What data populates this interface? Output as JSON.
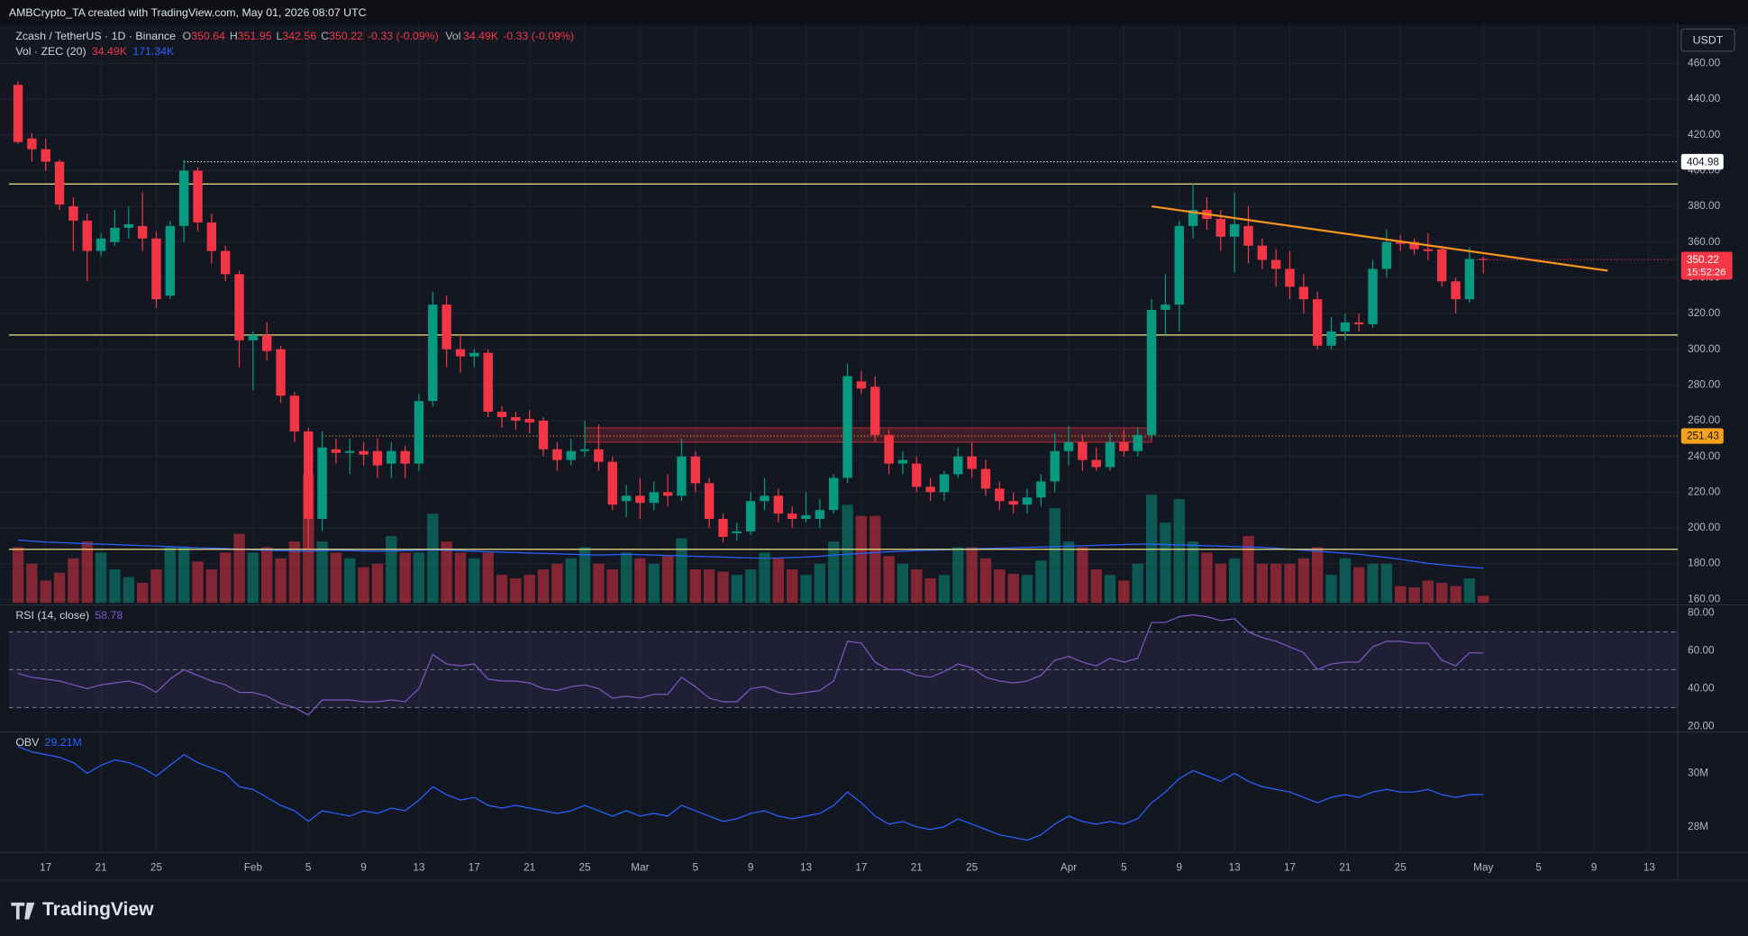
{
  "header": {
    "credit": "AMBCrypto_TA created with TradingView.com, May 01, 2026 08:07 UTC",
    "currency": "USDT",
    "logo": "TradingView"
  },
  "legend": {
    "symbol": "Zcash / TetherUS · 1D · Binance",
    "o": "O",
    "h": "H",
    "l": "L",
    "c": "C",
    "change": "-0.33 (-0.09%)",
    "vol": "Vol",
    "vol_value": "34.49K",
    "vol_change": "-0.33 (-0.09%)",
    "vol_title": "Vol · ZEC (20)",
    "vol_last": "34.49K",
    "vol_ma_last": "171.34K",
    "rsi_title": "RSI (14, close)",
    "obv_title": "OBV",
    "obv_last": "29.21M",
    "countdown": "15:52:26"
  },
  "chart_data": {
    "type": "candlestick",
    "title": "Zcash / TetherUS · 1D · Binance",
    "categories": [
      "Jan 15",
      "Jan 16",
      "Jan 17",
      "Jan 18",
      "Jan 19",
      "Jan 20",
      "Jan 21",
      "Jan 22",
      "Jan 23",
      "Jan 24",
      "Jan 25",
      "Jan 26",
      "Jan 27",
      "Jan 28",
      "Jan 29",
      "Jan 30",
      "Jan 31",
      "Feb 1",
      "Feb 2",
      "Feb 3",
      "Feb 4",
      "Feb 5",
      "Feb 6",
      "Feb 7",
      "Feb 8",
      "Feb 9",
      "Feb 10",
      "Feb 11",
      "Feb 12",
      "Feb 13",
      "Feb 14",
      "Feb 15",
      "Feb 16",
      "Feb 17",
      "Feb 18",
      "Feb 19",
      "Feb 20",
      "Feb 21",
      "Feb 22",
      "Feb 23",
      "Feb 24",
      "Feb 25",
      "Feb 26",
      "Feb 27",
      "Feb 28",
      "Mar 1",
      "Mar 2",
      "Mar 3",
      "Mar 4",
      "Mar 5",
      "Mar 6",
      "Mar 7",
      "Mar 8",
      "Mar 9",
      "Mar 10",
      "Mar 11",
      "Mar 12",
      "Mar 13",
      "Mar 14",
      "Mar 15",
      "Mar 16",
      "Mar 17",
      "Mar 18",
      "Mar 19",
      "Mar 20",
      "Mar 21",
      "Mar 22",
      "Mar 23",
      "Mar 24",
      "Mar 25",
      "Mar 26",
      "Mar 27",
      "Mar 28",
      "Mar 29",
      "Mar 30",
      "Mar 31",
      "Apr 1",
      "Apr 2",
      "Apr 3",
      "Apr 4",
      "Apr 5",
      "Apr 6",
      "Apr 7",
      "Apr 8",
      "Apr 9",
      "Apr 10",
      "Apr 11",
      "Apr 12",
      "Apr 13",
      "Apr 14",
      "Apr 15",
      "Apr 16",
      "Apr 17",
      "Apr 18",
      "Apr 19",
      "Apr 20",
      "Apr 21",
      "Apr 22",
      "Apr 23",
      "Apr 24",
      "Apr 25",
      "Apr 26",
      "Apr 27",
      "Apr 28",
      "Apr 29",
      "Apr 30",
      "May 1"
    ],
    "open": [
      448,
      418,
      412,
      405,
      380,
      372,
      355,
      360,
      368,
      369,
      362,
      330,
      369,
      400,
      371,
      355,
      342,
      305,
      308,
      300,
      274,
      254,
      205,
      244,
      242,
      243,
      243,
      236,
      243,
      236,
      271,
      325,
      300,
      296,
      298,
      265,
      262,
      261,
      260,
      244,
      238,
      243,
      244,
      237,
      215,
      218,
      214,
      220,
      218,
      240,
      225,
      205,
      197,
      198,
      215,
      218,
      208,
      205,
      205,
      210,
      228,
      282,
      279,
      252,
      236,
      236,
      223,
      220,
      230,
      240,
      233,
      222,
      215,
      213,
      217,
      226,
      243,
      248,
      238,
      234,
      248,
      243,
      252,
      322,
      325,
      369,
      378,
      373,
      363,
      369,
      358,
      350,
      345,
      335,
      328,
      302,
      310,
      315,
      314,
      345,
      360,
      360,
      356,
      356,
      338,
      328,
      350.64
    ],
    "high": [
      450,
      421,
      418,
      406,
      385,
      376,
      365,
      378,
      380,
      388,
      366,
      372,
      406,
      402,
      376,
      358,
      344,
      310,
      315,
      302,
      276,
      256,
      254,
      250,
      250,
      248,
      250,
      248,
      246,
      275,
      332,
      330,
      308,
      300,
      300,
      268,
      265,
      266,
      262,
      248,
      250,
      260,
      258,
      240,
      224,
      228,
      226,
      230,
      250,
      243,
      228,
      208,
      203,
      220,
      228,
      222,
      212,
      220,
      216,
      230,
      292,
      288,
      285,
      255,
      243,
      240,
      228,
      232,
      245,
      248,
      238,
      226,
      220,
      222,
      230,
      253,
      257,
      252,
      245,
      253,
      255,
      256,
      328,
      342,
      372,
      393,
      385,
      378,
      388,
      380,
      362,
      356,
      355,
      342,
      332,
      318,
      320,
      320,
      350,
      367,
      364,
      362,
      365,
      358,
      340,
      357,
      351.95
    ],
    "low": [
      415,
      405,
      400,
      378,
      355,
      338,
      352,
      358,
      362,
      355,
      323,
      328,
      360,
      366,
      348,
      338,
      290,
      277,
      294,
      270,
      248,
      188,
      198,
      236,
      230,
      235,
      228,
      228,
      228,
      232,
      268,
      290,
      287,
      290,
      262,
      256,
      255,
      253,
      240,
      232,
      235,
      240,
      232,
      210,
      206,
      205,
      210,
      212,
      215,
      220,
      200,
      192,
      193,
      196,
      210,
      203,
      200,
      203,
      200,
      208,
      225,
      275,
      248,
      230,
      230,
      220,
      215,
      215,
      228,
      228,
      218,
      210,
      208,
      208,
      212,
      220,
      235,
      232,
      232,
      232,
      240,
      240,
      250,
      308,
      310,
      362,
      367,
      355,
      343,
      348,
      345,
      335,
      328,
      320,
      300,
      300,
      305,
      310,
      312,
      340,
      355,
      353,
      350,
      335,
      320,
      326,
      342.56
    ],
    "close": [
      416,
      412,
      405,
      381,
      372,
      355,
      362,
      368,
      370,
      362,
      328,
      369,
      400,
      371,
      355,
      342,
      305,
      308,
      299,
      274,
      254,
      205,
      245,
      242,
      243,
      241,
      235,
      243,
      236,
      271,
      325,
      300,
      296,
      298,
      265,
      262,
      260,
      259,
      244,
      238,
      243,
      244,
      237,
      213,
      218,
      214,
      220,
      218,
      240,
      225,
      205,
      195,
      198,
      215,
      218,
      208,
      205,
      207,
      210,
      228,
      285,
      278,
      252,
      236,
      238,
      223,
      220,
      230,
      240,
      233,
      222,
      215,
      213,
      217,
      226,
      243,
      248,
      238,
      234,
      248,
      243,
      252,
      322,
      325,
      369,
      378,
      373,
      363,
      370,
      358,
      350,
      345,
      335,
      328,
      302,
      310,
      315,
      314,
      345,
      360,
      359,
      356,
      355,
      338,
      328,
      350.55,
      350.22
    ],
    "volume": [
      275,
      193,
      110,
      149,
      220,
      303,
      248,
      165,
      127,
      99,
      165,
      275,
      275,
      204,
      165,
      248,
      341,
      248,
      275,
      220,
      303,
      633,
      303,
      248,
      220,
      176,
      193,
      330,
      248,
      248,
      440,
      303,
      248,
      220,
      248,
      138,
      121,
      138,
      165,
      193,
      220,
      275,
      193,
      165,
      248,
      220,
      193,
      231,
      319,
      165,
      165,
      154,
      138,
      165,
      248,
      220,
      165,
      138,
      193,
      303,
      484,
      429,
      429,
      231,
      193,
      165,
      121,
      138,
      275,
      275,
      220,
      165,
      143,
      138,
      209,
      468,
      303,
      275,
      165,
      138,
      110,
      193,
      534,
      396,
      512,
      303,
      248,
      193,
      220,
      330,
      193,
      193,
      193,
      220,
      275,
      138,
      220,
      176,
      193,
      193,
      83,
      77,
      110,
      99,
      83,
      121,
      34.49
    ],
    "volume_ma": [
      310,
      305,
      300,
      298,
      295,
      292,
      290,
      288,
      285,
      283,
      280,
      278,
      275,
      272,
      270,
      268,
      265,
      262,
      260,
      258,
      256,
      255,
      258,
      260,
      258,
      256,
      255,
      256,
      258,
      260,
      262,
      260,
      258,
      255,
      252,
      250,
      248,
      246,
      244,
      242,
      240,
      238,
      236,
      238,
      240,
      238,
      236,
      234,
      232,
      230,
      228,
      226,
      224,
      222,
      220,
      222,
      224,
      226,
      230,
      236,
      240,
      244,
      248,
      252,
      255,
      258,
      260,
      262,
      264,
      266,
      268,
      270,
      272,
      274,
      276,
      278,
      280,
      282,
      284,
      286,
      288,
      290,
      290,
      288,
      286,
      284,
      282,
      280,
      278,
      276,
      274,
      270,
      265,
      260,
      255,
      250,
      245,
      240,
      232,
      224,
      215,
      205,
      195,
      188,
      182,
      176,
      171.34
    ],
    "rsi": [
      48,
      46,
      45,
      44,
      42,
      40,
      42,
      43,
      44,
      42,
      38,
      45,
      50,
      47,
      44,
      42,
      38,
      38,
      36,
      32,
      30,
      26,
      34,
      34,
      34,
      33,
      33,
      34,
      33,
      40,
      58,
      53,
      52,
      53,
      45,
      44,
      44,
      43,
      40,
      39,
      41,
      42,
      40,
      35,
      36,
      35,
      37,
      37,
      46,
      41,
      35,
      33,
      33,
      40,
      41,
      38,
      37,
      38,
      39,
      44,
      65,
      64,
      54,
      50,
      50,
      47,
      46,
      49,
      53,
      51,
      46,
      44,
      43,
      44,
      47,
      55,
      57,
      54,
      52,
      56,
      54,
      56,
      75,
      75,
      78,
      79,
      78,
      76,
      77,
      70,
      67,
      65,
      62,
      59,
      50,
      53,
      54,
      54,
      62,
      65,
      65,
      64,
      64,
      55,
      52,
      59,
      58.78
    ],
    "obv": [
      31.0,
      30.8,
      30.7,
      30.6,
      30.4,
      30.0,
      30.3,
      30.5,
      30.4,
      30.2,
      29.9,
      30.3,
      30.7,
      30.4,
      30.2,
      30.0,
      29.5,
      29.4,
      29.1,
      28.8,
      28.6,
      28.2,
      28.6,
      28.5,
      28.4,
      28.6,
      28.5,
      28.7,
      28.6,
      29.0,
      29.5,
      29.2,
      29.0,
      29.1,
      28.8,
      28.7,
      28.8,
      28.7,
      28.6,
      28.5,
      28.6,
      28.8,
      28.6,
      28.4,
      28.6,
      28.4,
      28.5,
      28.4,
      28.8,
      28.6,
      28.4,
      28.2,
      28.3,
      28.5,
      28.6,
      28.4,
      28.3,
      28.4,
      28.5,
      28.8,
      29.3,
      28.9,
      28.4,
      28.1,
      28.2,
      28.0,
      27.9,
      28.0,
      28.3,
      28.1,
      27.9,
      27.7,
      27.6,
      27.5,
      27.7,
      28.1,
      28.4,
      28.2,
      28.1,
      28.2,
      28.1,
      28.3,
      28.9,
      29.3,
      29.8,
      30.1,
      29.9,
      29.7,
      30.0,
      29.7,
      29.5,
      29.4,
      29.3,
      29.1,
      28.9,
      29.1,
      29.2,
      29.1,
      29.3,
      29.4,
      29.3,
      29.3,
      29.4,
      29.2,
      29.1,
      29.2,
      29.21
    ],
    "up_color": "#089981",
    "down_color": "#f23645",
    "volume_ma_color": "#2962ff",
    "rsi_color": "#7e57c2",
    "obv_color": "#2962ff",
    "ylim": [
      156.8,
      481.8
    ],
    "yticks": [
      {
        "value": 160,
        "label": "160.00"
      },
      {
        "value": 180,
        "label": "180.00"
      },
      {
        "value": 200,
        "label": "200.00"
      },
      {
        "value": 220,
        "label": "220.00"
      },
      {
        "value": 240,
        "label": "240.00"
      },
      {
        "value": 260,
        "label": "260.00"
      },
      {
        "value": 280,
        "label": "280.00"
      },
      {
        "value": 300,
        "label": "300.00"
      },
      {
        "value": 320,
        "label": "320.00"
      },
      {
        "value": 340,
        "label": "340.00"
      },
      {
        "value": 360,
        "label": "360.00"
      },
      {
        "value": 380,
        "label": "380.00"
      },
      {
        "value": 400,
        "label": "400.00"
      },
      {
        "value": 420,
        "label": "420.00"
      },
      {
        "value": 440,
        "label": "440.00"
      },
      {
        "value": 460,
        "label": "460.00"
      }
    ],
    "xticks": [
      {
        "value": "Jan 17",
        "label": "17"
      },
      {
        "value": "Jan 21",
        "label": "21"
      },
      {
        "value": "Jan 25",
        "label": "25"
      },
      {
        "value": "Feb 1",
        "label": "Feb"
      },
      {
        "value": "Feb 5",
        "label": "5"
      },
      {
        "value": "Feb 9",
        "label": "9"
      },
      {
        "value": "Feb 13",
        "label": "13"
      },
      {
        "value": "Feb 17",
        "label": "17"
      },
      {
        "value": "Feb 21",
        "label": "21"
      },
      {
        "value": "Feb 25",
        "label": "25"
      },
      {
        "value": "Mar 1",
        "label": "Mar"
      },
      {
        "value": "Mar 5",
        "label": "5"
      },
      {
        "value": "Mar 9",
        "label": "9"
      },
      {
        "value": "Mar 13",
        "label": "13"
      },
      {
        "value": "Mar 17",
        "label": "17"
      },
      {
        "value": "Mar 21",
        "label": "21"
      },
      {
        "value": "Mar 25",
        "label": "25"
      },
      {
        "value": "Apr 1",
        "label": "Apr"
      },
      {
        "value": "Apr 5",
        "label": "5"
      },
      {
        "value": "Apr 9",
        "label": "9"
      },
      {
        "value": "Apr 13",
        "label": "13"
      },
      {
        "value": "Apr 17",
        "label": "17"
      },
      {
        "value": "Apr 21",
        "label": "21"
      },
      {
        "value": "Apr 25",
        "label": "25"
      },
      {
        "value": "May 1",
        "label": "May"
      },
      {
        "value": "May 5",
        "label": "5"
      },
      {
        "value": "May 9",
        "label": "9"
      },
      {
        "value": "May 13",
        "label": "13"
      }
    ],
    "rsi_ylim": [
      17,
      83
    ],
    "rsi_yticks": [
      {
        "value": 20,
        "label": "20.00"
      },
      {
        "value": 40,
        "label": "40.00"
      },
      {
        "value": 60,
        "label": "60.00"
      },
      {
        "value": 80,
        "label": "80.00"
      }
    ],
    "rsi_bands": [
      30,
      50,
      70
    ],
    "obv_ylim": [
      27.04,
      31.46
    ],
    "obv_yticks": [
      {
        "value": 28,
        "label": "28M"
      },
      {
        "value": 30,
        "label": "30M"
      }
    ],
    "levels": [
      {
        "value": 392.5,
        "color": "#f0e58a"
      },
      {
        "value": 308,
        "color": "#f0e58a"
      },
      {
        "value": 188,
        "color": "#f0e58a"
      }
    ],
    "price_marks": [
      {
        "value": 404.98,
        "color": "#ffffff",
        "from": "Jan 27"
      },
      {
        "value": 251.43,
        "color": "#f7a21b",
        "from": "Feb 6"
      }
    ],
    "zone": {
      "from": "Feb 25",
      "to": "Apr 7",
      "top": 256,
      "bottom": 248,
      "color": "#f23645"
    },
    "trendline": {
      "from": "Apr 7",
      "to": "May 10",
      "start": 380,
      "end": 344,
      "color": "#f7941d"
    },
    "grid": true
  }
}
